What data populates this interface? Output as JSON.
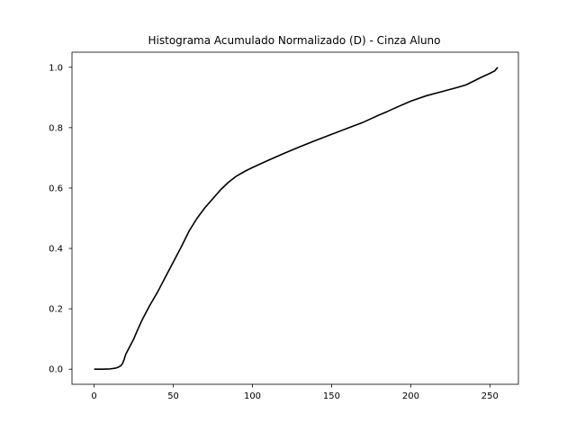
{
  "chart_data": {
    "type": "line",
    "title": "Histograma Acumulado Normalizado (D) - Cinza Aluno",
    "xlabel": "",
    "ylabel": "",
    "xlim": [
      -14,
      268
    ],
    "ylim": [
      -0.05,
      1.05
    ],
    "xticks": [
      0,
      50,
      100,
      150,
      200,
      250
    ],
    "yticks": [
      0.0,
      0.2,
      0.4,
      0.6,
      0.8,
      1.0
    ],
    "xtick_labels": [
      "0",
      "50",
      "100",
      "150",
      "200",
      "250"
    ],
    "ytick_labels": [
      "0.0",
      "0.2",
      "0.4",
      "0.6",
      "0.8",
      "1.0"
    ],
    "grid": false,
    "line_color": "#000000",
    "series": [
      {
        "x": [
          0,
          5,
          10,
          13,
          15,
          17,
          18,
          19,
          20,
          22,
          25,
          27,
          30,
          35,
          40,
          45,
          50,
          55,
          60,
          65,
          70,
          75,
          80,
          85,
          90,
          95,
          100,
          110,
          120,
          130,
          140,
          150,
          160,
          170,
          175,
          180,
          185,
          190,
          200,
          210,
          220,
          230,
          235,
          240,
          245,
          250,
          253,
          255
        ],
        "y": [
          0.0,
          0.0,
          0.001,
          0.003,
          0.006,
          0.012,
          0.02,
          0.033,
          0.05,
          0.07,
          0.1,
          0.125,
          0.16,
          0.21,
          0.255,
          0.305,
          0.355,
          0.405,
          0.458,
          0.5,
          0.535,
          0.565,
          0.595,
          0.62,
          0.64,
          0.655,
          0.668,
          0.692,
          0.715,
          0.737,
          0.758,
          0.778,
          0.798,
          0.818,
          0.83,
          0.842,
          0.853,
          0.865,
          0.888,
          0.906,
          0.92,
          0.934,
          0.942,
          0.955,
          0.968,
          0.98,
          0.988,
          1.0
        ]
      }
    ]
  }
}
